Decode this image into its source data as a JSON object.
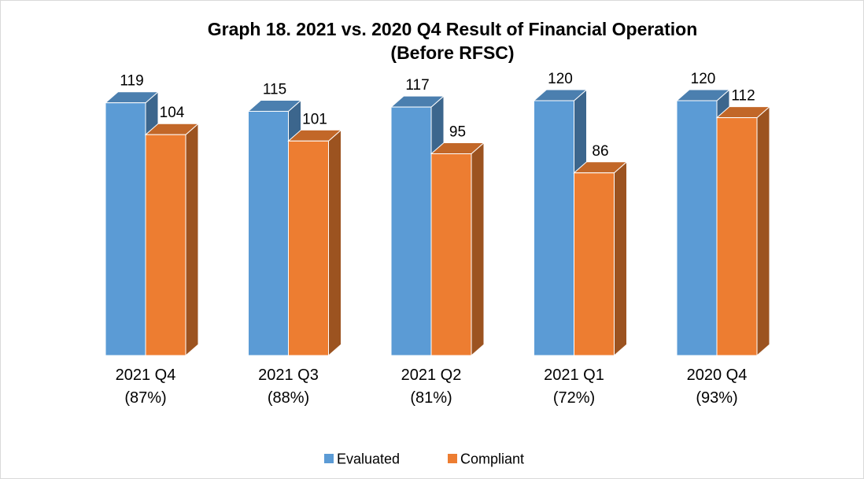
{
  "chart_data": {
    "type": "bar3d",
    "title": "Graph 18. 2021 vs. 2020 Q4 Result of Financial Operation",
    "subtitle": "(Before RFSC)",
    "categories": [
      "2021 Q4\n(87%)",
      "2021 Q3\n(88%)",
      "2021 Q2\n(81%)",
      "2021 Q1\n(72%)",
      "2020 Q4\n(93%)"
    ],
    "series": [
      {
        "name": "Evaluated",
        "color": "#5b9bd5",
        "values": [
          119,
          115,
          117,
          120,
          120
        ]
      },
      {
        "name": "Compliant",
        "color": "#ed7d31",
        "values": [
          104,
          101,
          95,
          86,
          112
        ]
      }
    ],
    "ylim": [
      0,
      120
    ],
    "legend": "bottom"
  }
}
